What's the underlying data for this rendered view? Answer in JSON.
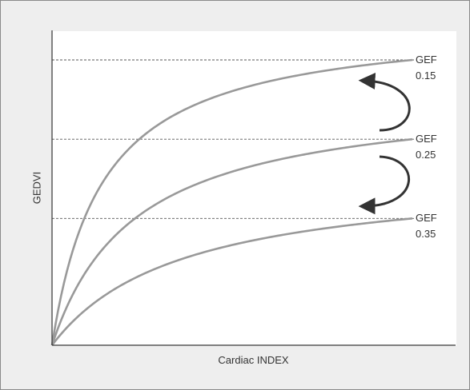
{
  "chart_data": {
    "type": "line",
    "title": "",
    "xlabel": "Cardiac INDEX",
    "ylabel": "GEDVI",
    "grid": false,
    "legend": "none",
    "series": [
      {
        "label_line1": "GEF",
        "label_line2": "0.15",
        "plateau": 3.6,
        "k": 0.14
      },
      {
        "label_line1": "GEF",
        "label_line2": "0.25",
        "plateau": 2.6,
        "k": 0.23
      },
      {
        "label_line1": "GEF",
        "label_line2": "0.35",
        "plateau": 1.6,
        "k": 0.36
      }
    ],
    "xlim": [
      0,
      1
    ],
    "ylim": [
      0,
      3.6
    ],
    "reference_lines": [
      3.6,
      2.6,
      1.6
    ],
    "annotations": [
      {
        "type": "arrow",
        "from_series": 1,
        "to_series": 0,
        "shape": "curved"
      },
      {
        "type": "arrow",
        "from_series": 1,
        "to_series": 2,
        "shape": "curved"
      }
    ],
    "colors": {
      "curve": "#999999",
      "axis": "#333333",
      "dashed": "#555555",
      "arrow": "#333333"
    }
  }
}
